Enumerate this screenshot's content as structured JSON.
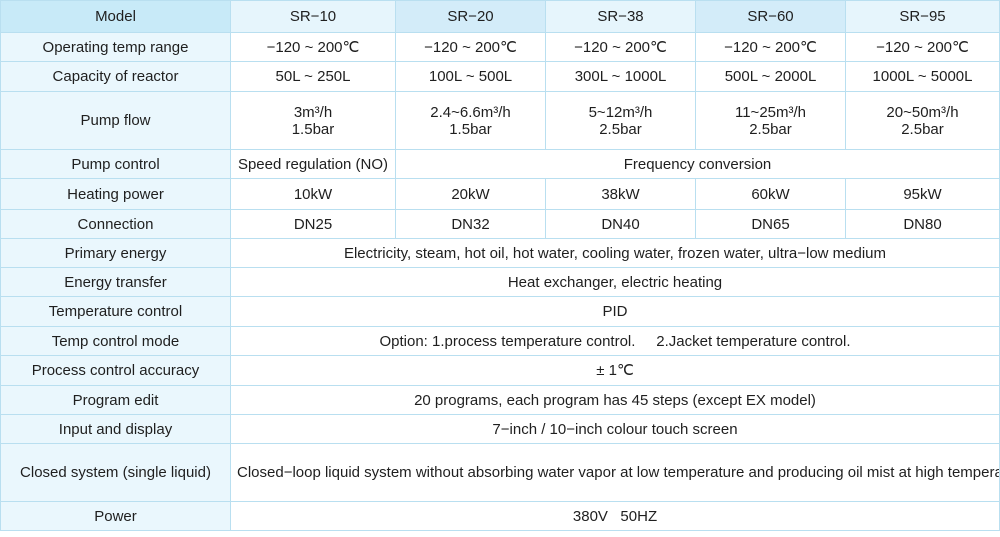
{
  "table": {
    "header": {
      "label": "Model",
      "models": [
        "SR−10",
        "SR−20",
        "SR−38",
        "SR−60",
        "SR−95"
      ]
    },
    "rows": {
      "operating_temp": {
        "label": "Operating temp range",
        "values": [
          "−120 ~ 200℃",
          "−120 ~ 200℃",
          "−120 ~ 200℃",
          "−120 ~ 200℃",
          "−120 ~ 200℃"
        ]
      },
      "capacity": {
        "label": "Capacity of reactor",
        "values": [
          "50L ~ 250L",
          "100L ~ 500L",
          "300L ~ 1000L",
          "500L ~ 2000L",
          "1000L ~ 5000L"
        ]
      },
      "pump_flow": {
        "label": "Pump flow",
        "values": [
          {
            "flow": "3m³/h",
            "pressure": "1.5bar"
          },
          {
            "flow": "2.4~6.6m³/h",
            "pressure": "1.5bar"
          },
          {
            "flow": "5~12m³/h",
            "pressure": "2.5bar"
          },
          {
            "flow": "11~25m³/h",
            "pressure": "2.5bar"
          },
          {
            "flow": "20~50m³/h",
            "pressure": "2.5bar"
          }
        ]
      },
      "pump_control": {
        "label": "Pump control",
        "first": "Speed regulation (NO)",
        "rest": "Frequency conversion"
      },
      "heating_power": {
        "label": "Heating power",
        "values": [
          "10kW",
          "20kW",
          "38kW",
          "60kW",
          "95kW"
        ]
      },
      "connection": {
        "label": "Connection",
        "values": [
          "DN25",
          "DN32",
          "DN40",
          "DN65",
          "DN80"
        ]
      },
      "primary_energy": {
        "label": "Primary energy",
        "value": "Electricity, steam, hot oil, hot water, cooling water, frozen water, ultra−low medium"
      },
      "energy_transfer": {
        "label": "Energy transfer",
        "value": "Heat exchanger, electric heating"
      },
      "temperature_control": {
        "label": "Temperature control",
        "value": "PID"
      },
      "temp_control_mode": {
        "label": "Temp control mode",
        "value": "Option: 1.process temperature control.     2.Jacket temperature control."
      },
      "process_accuracy": {
        "label": "Process control accuracy",
        "value": "± 1℃"
      },
      "program_edit": {
        "label": "Program edit",
        "value": "20 programs, each program has 45 steps (except EX model)"
      },
      "input_display": {
        "label": "Input and display",
        "value": "7−inch / 10−inch colour touch screen"
      },
      "closed_system": {
        "label": "Closed system (single liquid)",
        "value": "Closed−loop liquid system without absorbing water vapor at low temperature and producing oil mist at high temperature. the pressure of liquid will not go up under high temperature, and automatically add the heat oil under low temperature"
      },
      "power": {
        "label": "Power",
        "value": "380V   50HZ"
      }
    }
  }
}
